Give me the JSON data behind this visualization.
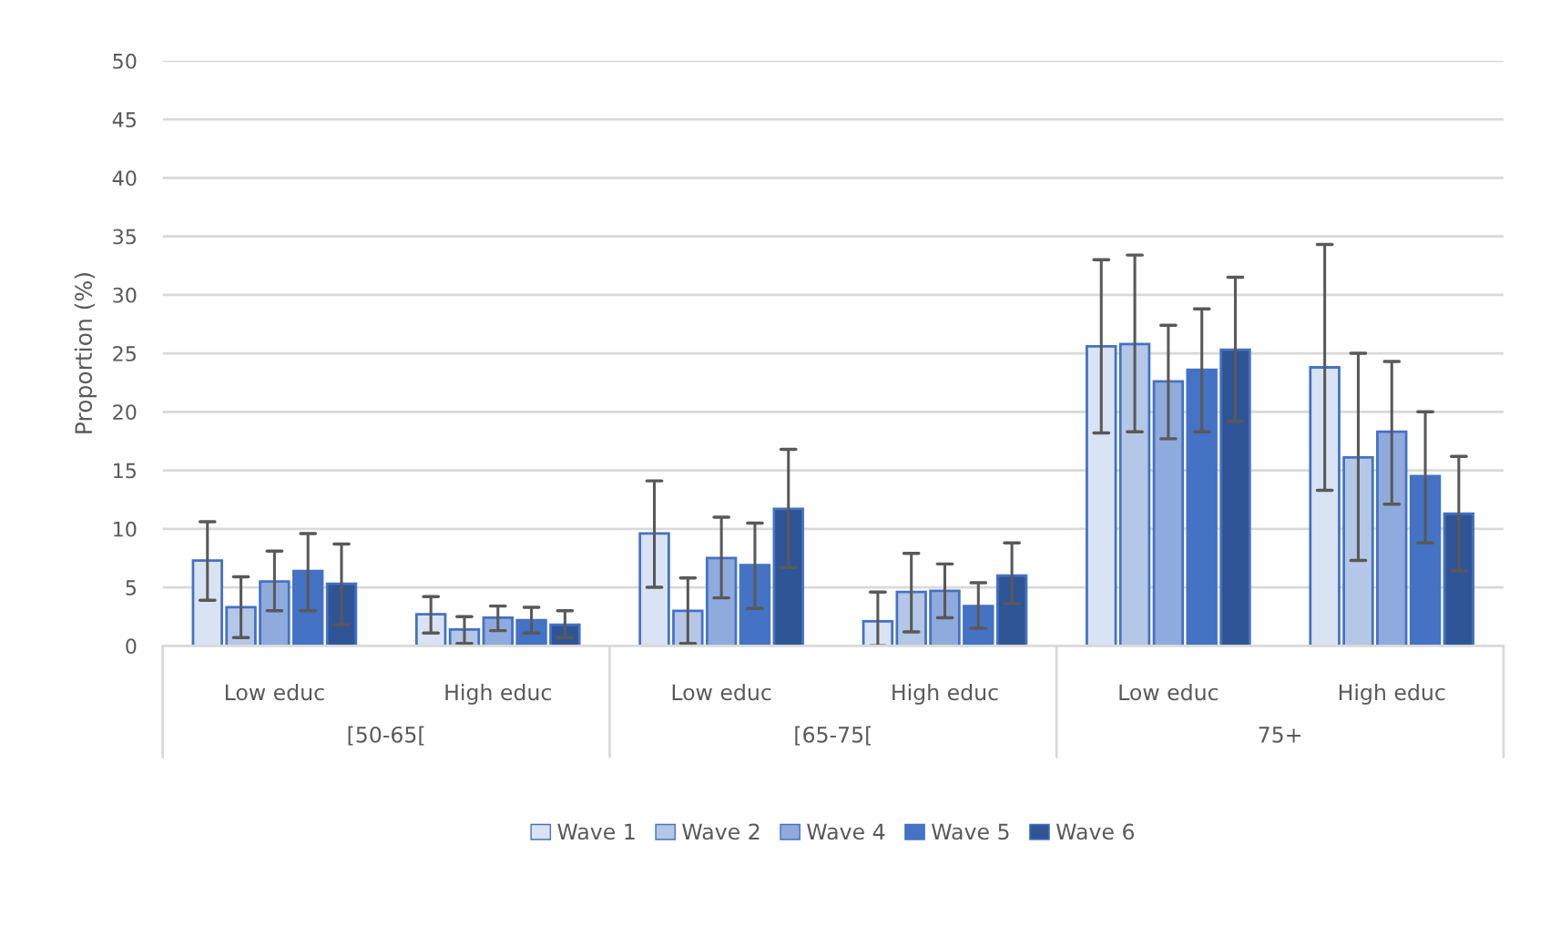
{
  "chart_data": {
    "type": "bar",
    "ylabel": "Proportion (%)",
    "categories": [
      "Low educ",
      "High educ",
      "Low educ",
      "High educ",
      "Low educ",
      "High educ"
    ],
    "annotations": [
      "[50-65[",
      "[65-75[",
      "75+"
    ],
    "series": [
      {
        "name": "Wave 1",
        "color": "#dae3f3",
        "values": [
          7.3,
          2.7,
          9.6,
          2.1,
          25.6,
          23.8
        ],
        "errors": [
          [
            3.9,
            10.6
          ],
          [
            1.1,
            4.2
          ],
          [
            5.0,
            14.1
          ],
          [
            0,
            4.6
          ],
          [
            18.2,
            33.0
          ],
          [
            13.3,
            34.3
          ]
        ]
      },
      {
        "name": "Wave 2",
        "color": "#b4c7e7",
        "values": [
          3.3,
          1.4,
          3.0,
          4.6,
          25.8,
          16.1
        ],
        "errors": [
          [
            0.7,
            5.9
          ],
          [
            0.2,
            2.5
          ],
          [
            0.2,
            5.8
          ],
          [
            1.2,
            7.9
          ],
          [
            18.3,
            33.4
          ],
          [
            7.3,
            25.0
          ]
        ]
      },
      {
        "name": "Wave 4",
        "color": "#8faadc",
        "values": [
          5.5,
          2.4,
          7.5,
          4.7,
          22.6,
          18.3
        ],
        "errors": [
          [
            3.0,
            8.1
          ],
          [
            1.3,
            3.4
          ],
          [
            4.1,
            11.0
          ],
          [
            2.4,
            7.0
          ],
          [
            17.7,
            27.4
          ],
          [
            12.1,
            24.3
          ]
        ]
      },
      {
        "name": "Wave 5",
        "color": "#4472c4",
        "values": [
          6.4,
          2.2,
          6.9,
          3.4,
          23.6,
          14.5
        ],
        "errors": [
          [
            3.0,
            9.6
          ],
          [
            1.1,
            3.3
          ],
          [
            3.2,
            10.5
          ],
          [
            1.5,
            5.4
          ],
          [
            18.3,
            28.8
          ],
          [
            8.8,
            20.0
          ]
        ]
      },
      {
        "name": "Wave 6",
        "color": "#2f5597",
        "values": [
          5.3,
          1.8,
          11.7,
          6.0,
          25.3,
          11.3
        ],
        "errors": [
          [
            1.8,
            8.7
          ],
          [
            0.7,
            3.0
          ],
          [
            6.7,
            16.8
          ],
          [
            3.6,
            8.8
          ],
          [
            19.2,
            31.5
          ],
          [
            6.4,
            16.2
          ]
        ]
      }
    ],
    "ylim": [
      0,
      50
    ],
    "yticks": [
      0,
      5,
      10,
      15,
      20,
      25,
      30,
      35,
      40,
      45,
      50
    ],
    "grid": "y",
    "legend": "bottom"
  }
}
